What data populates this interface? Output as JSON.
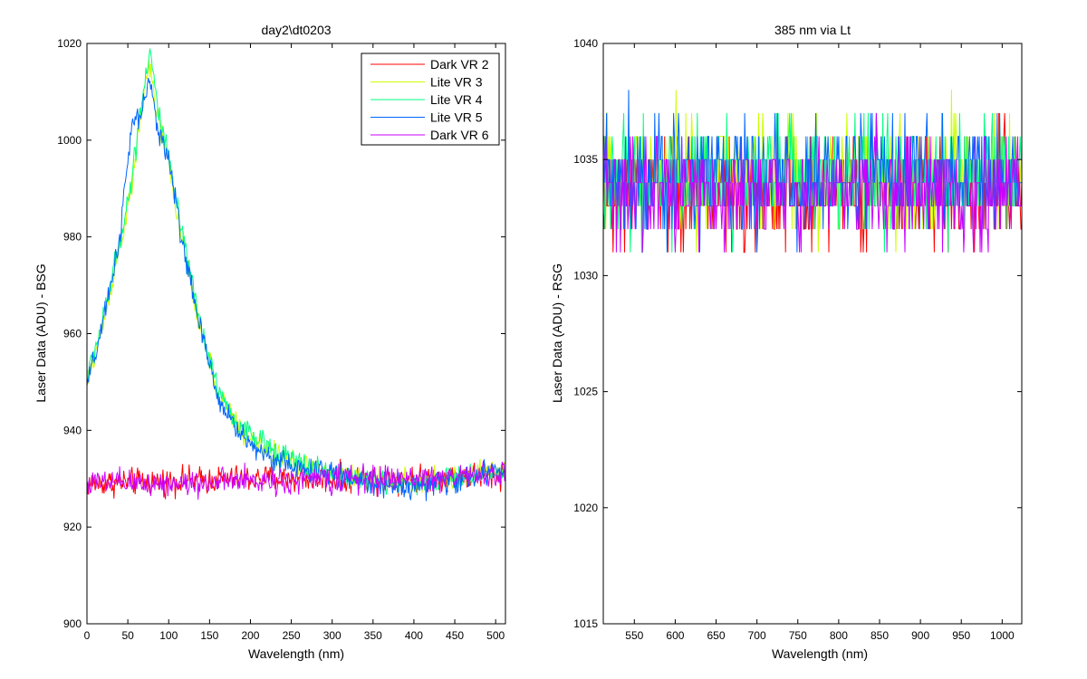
{
  "chart_data": [
    {
      "type": "line",
      "title": "day2\\dt0203",
      "xlabel": "Wavelength (nm)",
      "ylabel": "Laser Data (ADU) - BSG",
      "xlim": [
        0,
        512
      ],
      "ylim": [
        900,
        1020
      ],
      "xticks": [
        0,
        50,
        100,
        150,
        200,
        250,
        300,
        350,
        400,
        450,
        500
      ],
      "yticks": [
        900,
        920,
        940,
        960,
        980,
        1000,
        1020
      ],
      "legend_position": "top-right",
      "grid": false,
      "series": [
        {
          "name": "Dark VR 2",
          "color": "#ff0000",
          "noise": 2.0,
          "points": [
            [
              0,
              929
            ],
            [
              100,
              929.5
            ],
            [
              200,
              930
            ],
            [
              300,
              930
            ],
            [
              400,
              930
            ],
            [
              512,
              931
            ]
          ]
        },
        {
          "name": "Lite VR 3",
          "color": "#ccff00",
          "noise": 1.8,
          "points": [
            [
              0,
              950
            ],
            [
              20,
              962
            ],
            [
              40,
              978
            ],
            [
              55,
              990
            ],
            [
              65,
              1004
            ],
            [
              75,
              1016
            ],
            [
              85,
              1006
            ],
            [
              100,
              995
            ],
            [
              120,
              976
            ],
            [
              140,
              960
            ],
            [
              160,
              948
            ],
            [
              180,
              942
            ],
            [
              200,
              938
            ],
            [
              230,
              935
            ],
            [
              260,
              933
            ],
            [
              300,
              931
            ],
            [
              350,
              930
            ],
            [
              400,
              929.5
            ],
            [
              450,
              930
            ],
            [
              512,
              932
            ]
          ]
        },
        {
          "name": "Lite VR 4",
          "color": "#00ff80",
          "noise": 1.8,
          "points": [
            [
              0,
              951
            ],
            [
              20,
              963
            ],
            [
              40,
              979
            ],
            [
              55,
              992
            ],
            [
              65,
              1006
            ],
            [
              77,
              1019
            ],
            [
              87,
              1006
            ],
            [
              100,
              996
            ],
            [
              120,
              977
            ],
            [
              140,
              961
            ],
            [
              160,
              949
            ],
            [
              180,
              942
            ],
            [
              200,
              939
            ],
            [
              230,
              936
            ],
            [
              260,
              933
            ],
            [
              300,
              931
            ],
            [
              350,
              929.5
            ],
            [
              400,
              929
            ],
            [
              450,
              930
            ],
            [
              512,
              932
            ]
          ]
        },
        {
          "name": "Lite VR 5",
          "color": "#0066ff",
          "noise": 1.8,
          "points": [
            [
              0,
              949
            ],
            [
              20,
              962
            ],
            [
              40,
              980
            ],
            [
              55,
              1003
            ],
            [
              65,
              1005
            ],
            [
              76,
              1012
            ],
            [
              85,
              1004
            ],
            [
              100,
              996
            ],
            [
              120,
              976
            ],
            [
              140,
              960
            ],
            [
              160,
              947
            ],
            [
              180,
              941
            ],
            [
              200,
              937
            ],
            [
              230,
              934
            ],
            [
              260,
              932
            ],
            [
              300,
              931
            ],
            [
              350,
              929
            ],
            [
              400,
              928.5
            ],
            [
              450,
              929.5
            ],
            [
              512,
              932
            ]
          ]
        },
        {
          "name": "Dark VR 6",
          "color": "#cc00ff",
          "noise": 2.0,
          "points": [
            [
              0,
              929
            ],
            [
              100,
              929
            ],
            [
              200,
              929.5
            ],
            [
              300,
              930
            ],
            [
              400,
              930
            ],
            [
              512,
              931
            ]
          ]
        }
      ]
    },
    {
      "type": "line",
      "title": "385 nm via Lt",
      "xlabel": "Wavelength (nm)",
      "ylabel": "Laser Data (ADU) - RSG",
      "xlim": [
        512,
        1024
      ],
      "ylim": [
        1015,
        1040
      ],
      "xticks": [
        550,
        600,
        650,
        700,
        750,
        800,
        850,
        900,
        950,
        1000
      ],
      "yticks": [
        1015,
        1020,
        1025,
        1030,
        1035,
        1040
      ],
      "grid": false,
      "series": [
        {
          "color": "#ff0000",
          "mean": 1033.6,
          "spread": 1.4
        },
        {
          "color": "#ccff00",
          "mean": 1034.4,
          "spread": 1.5
        },
        {
          "color": "#00ff80",
          "mean": 1034.3,
          "spread": 1.5
        },
        {
          "color": "#0066ff",
          "mean": 1034.3,
          "spread": 1.5
        },
        {
          "color": "#cc00ff",
          "mean": 1033.6,
          "spread": 1.4
        }
      ]
    }
  ]
}
